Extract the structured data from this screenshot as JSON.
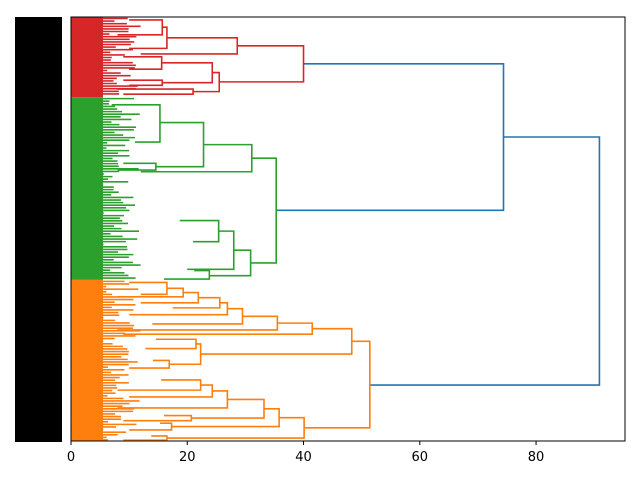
{
  "chart_data": {
    "type": "dendrogram",
    "title": "",
    "xlabel": "",
    "ylabel": "",
    "orientation": "left",
    "xlim": [
      0,
      95.3
    ],
    "leaf_axis_range": [
      0,
      1000
    ],
    "xticks": [
      0,
      20,
      40,
      60,
      80
    ],
    "xtick_labels": [
      "0",
      "20",
      "40",
      "60",
      "80"
    ],
    "grid": false,
    "colors": {
      "cluster_1": "#d62728",
      "cluster_2": "#2ca02c",
      "cluster_3": "#ff7f0e",
      "above_threshold": "#1f77b4"
    },
    "clusters": [
      {
        "name": "cluster_1",
        "color": "#d62728",
        "leaf_range": [
          0,
          189
        ]
      },
      {
        "name": "cluster_2",
        "color": "#2ca02c",
        "leaf_range": [
          189,
          620
        ]
      },
      {
        "name": "cluster_3",
        "color": "#ff7f0e",
        "leaf_range": [
          620,
          1000
        ]
      }
    ],
    "links": [
      {
        "c": "#1f77b4",
        "h": 90.9,
        "a": [
          283,
          74.4
        ],
        "b": [
          868,
          51.4
        ]
      },
      {
        "c": "#1f77b4",
        "h": 74.4,
        "a": [
          110.5,
          40.0
        ],
        "b": [
          456,
          35.3
        ]
      },
      {
        "c": "#d62728",
        "h": 40.0,
        "a": [
          68,
          28.6
        ],
        "b": [
          153,
          25.5
        ]
      },
      {
        "c": "#d62728",
        "h": 28.6,
        "a": [
          49,
          16.5
        ],
        "b": [
          87,
          12
        ]
      },
      {
        "c": "#d62728",
        "h": 25.5,
        "a": [
          131,
          24.3
        ],
        "b": [
          176,
          21.0
        ]
      },
      {
        "c": "#d62728",
        "h": 24.3,
        "a": [
          108,
          15.6
        ],
        "b": [
          155,
          15.7
        ]
      },
      {
        "c": "#d62728",
        "h": 16.5,
        "a": [
          24,
          15.7
        ],
        "b": [
          74,
          10
        ]
      },
      {
        "c": "#d62728",
        "h": 15.7,
        "a": [
          7,
          10
        ],
        "b": [
          42,
          8
        ]
      },
      {
        "c": "#d62728",
        "h": 21.0,
        "a": [
          170,
          8
        ],
        "b": [
          182,
          9
        ]
      },
      {
        "c": "#d62728",
        "h": 15.6,
        "a": [
          94,
          9
        ],
        "b": [
          123,
          10
        ]
      },
      {
        "c": "#d62728",
        "h": 15.7,
        "a": [
          149,
          9
        ],
        "b": [
          161,
          10
        ]
      },
      {
        "c": "#2ca02c",
        "h": 35.3,
        "a": [
          333,
          31.1
        ],
        "b": [
          580,
          30.9
        ]
      },
      {
        "c": "#2ca02c",
        "h": 31.1,
        "a": [
          301,
          22.8
        ],
        "b": [
          365,
          12
        ]
      },
      {
        "c": "#2ca02c",
        "h": 22.8,
        "a": [
          249,
          15.3
        ],
        "b": [
          353,
          14.6
        ]
      },
      {
        "c": "#2ca02c",
        "h": 15.3,
        "a": [
          207,
          7
        ],
        "b": [
          295,
          11
        ]
      },
      {
        "c": "#2ca02c",
        "h": 30.9,
        "a": [
          550,
          28.0
        ],
        "b": [
          610,
          23.8
        ]
      },
      {
        "c": "#2ca02c",
        "h": 28.0,
        "a": [
          505,
          25.4
        ],
        "b": [
          595,
          20
        ]
      },
      {
        "c": "#2ca02c",
        "h": 25.4,
        "a": [
          480,
          18.7
        ],
        "b": [
          530,
          21
        ]
      },
      {
        "c": "#2ca02c",
        "h": 23.8,
        "a": [
          598,
          21.2
        ],
        "b": [
          618,
          16
        ]
      },
      {
        "c": "#2ca02c",
        "h": 14.6,
        "a": [
          345,
          9
        ],
        "b": [
          361,
          8
        ]
      },
      {
        "c": "#ff7f0e",
        "h": 51.4,
        "a": [
          765,
          48.3
        ],
        "b": [
          969,
          40.1
        ]
      },
      {
        "c": "#ff7f0e",
        "h": 48.3,
        "a": [
          735,
          41.5
        ],
        "b": [
          795,
          22.3
        ]
      },
      {
        "c": "#ff7f0e",
        "h": 41.5,
        "a": [
          722,
          35.5
        ],
        "b": [
          748,
          9
        ]
      },
      {
        "c": "#ff7f0e",
        "h": 35.5,
        "a": [
          706,
          29.5
        ],
        "b": [
          738,
          8
        ]
      },
      {
        "c": "#ff7f0e",
        "h": 29.5,
        "a": [
          688,
          26.9
        ],
        "b": [
          724,
          14
        ]
      },
      {
        "c": "#ff7f0e",
        "h": 26.9,
        "a": [
          674,
          25.6
        ],
        "b": [
          702,
          10
        ]
      },
      {
        "c": "#ff7f0e",
        "h": 25.6,
        "a": [
          662,
          21.9
        ],
        "b": [
          686,
          17.5
        ]
      },
      {
        "c": "#ff7f0e",
        "h": 21.9,
        "a": [
          650,
          19.3
        ],
        "b": [
          674,
          12
        ]
      },
      {
        "c": "#ff7f0e",
        "h": 19.3,
        "a": [
          640,
          16.5
        ],
        "b": [
          660,
          8
        ]
      },
      {
        "c": "#ff7f0e",
        "h": 16.5,
        "a": [
          626,
          10
        ],
        "b": [
          654,
          12
        ]
      },
      {
        "c": "#ff7f0e",
        "h": 22.3,
        "a": [
          771,
          21.5
        ],
        "b": [
          819,
          16.9
        ]
      },
      {
        "c": "#ff7f0e",
        "h": 21.5,
        "a": [
          760,
          14.6
        ],
        "b": [
          782,
          12.8
        ]
      },
      {
        "c": "#ff7f0e",
        "h": 16.9,
        "a": [
          810,
          14.1
        ],
        "b": [
          828,
          10
        ]
      },
      {
        "c": "#ff7f0e",
        "h": 40.1,
        "a": [
          945,
          35.8
        ],
        "b": [
          993,
          16.5
        ]
      },
      {
        "c": "#ff7f0e",
        "h": 35.8,
        "a": [
          924,
          33.2
        ],
        "b": [
          966,
          17.3
        ]
      },
      {
        "c": "#ff7f0e",
        "h": 33.2,
        "a": [
          902,
          26.9
        ],
        "b": [
          946,
          20.7
        ]
      },
      {
        "c": "#ff7f0e",
        "h": 26.9,
        "a": [
          882,
          24.3
        ],
        "b": [
          922,
          8
        ]
      },
      {
        "c": "#ff7f0e",
        "h": 24.3,
        "a": [
          868,
          22.3
        ],
        "b": [
          896,
          10
        ]
      },
      {
        "c": "#ff7f0e",
        "h": 22.3,
        "a": [
          856,
          15.5
        ],
        "b": [
          880,
          8
        ]
      },
      {
        "c": "#ff7f0e",
        "h": 20.7,
        "a": [
          940,
          16.0
        ],
        "b": [
          952,
          9
        ]
      },
      {
        "c": "#ff7f0e",
        "h": 17.3,
        "a": [
          958,
          15.3
        ],
        "b": [
          974,
          10
        ]
      },
      {
        "c": "#ff7f0e",
        "h": 16.5,
        "a": [
          988,
          13.8
        ],
        "b": [
          998,
          9
        ]
      }
    ]
  }
}
